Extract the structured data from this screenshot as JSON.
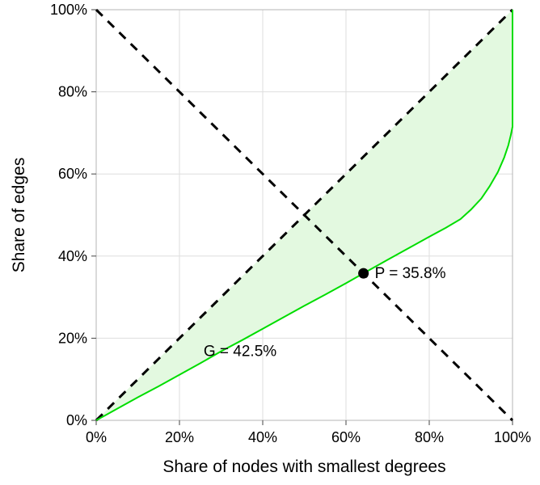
{
  "chart_data": {
    "type": "line",
    "title": "",
    "xlabel": "Share of nodes with smallest degrees",
    "ylabel": "Share of edges",
    "xlim": [
      0,
      100
    ],
    "ylim": [
      0,
      100
    ],
    "grid": true,
    "x_ticks": [
      0,
      20,
      40,
      60,
      80,
      100
    ],
    "y_ticks": [
      0,
      20,
      40,
      60,
      80,
      100
    ],
    "x_tick_labels": [
      "0%",
      "20%",
      "40%",
      "60%",
      "80%",
      "100%"
    ],
    "y_tick_labels": [
      "0%",
      "20%",
      "40%",
      "60%",
      "80%",
      "100%"
    ],
    "colors": {
      "curve": "#00dd00",
      "area_fill": "#e3f9e0",
      "dashed_line": "#000000",
      "grid": "#dedede",
      "axis_box": "#b5b5b5",
      "text": "#000000"
    },
    "series": [
      {
        "id": "equality-diagonal",
        "name": "equality diagonal (y = x)",
        "color": "#000000",
        "width": 3,
        "dash": "11 9",
        "points": [
          [
            0,
            0
          ],
          [
            100,
            100
          ]
        ]
      },
      {
        "id": "anti-diagonal",
        "name": "anti-diagonal (y = 100% - x)",
        "color": "#000000",
        "width": 3,
        "dash": "11 9",
        "points": [
          [
            0,
            100
          ],
          [
            100,
            0
          ]
        ]
      },
      {
        "id": "lorenz-curve",
        "name": "Lorenz curve of edge share vs node share",
        "color": "#00dd00",
        "width": 2,
        "dash": "",
        "points": [
          [
            0,
            0
          ],
          [
            5,
            2.8
          ],
          [
            10,
            5.6
          ],
          [
            15,
            8.3
          ],
          [
            20,
            11.1
          ],
          [
            25,
            13.9
          ],
          [
            30,
            16.8
          ],
          [
            35,
            19.5
          ],
          [
            40,
            22.3
          ],
          [
            45,
            25.1
          ],
          [
            50,
            27.9
          ],
          [
            55,
            30.6
          ],
          [
            60,
            33.4
          ],
          [
            64.2,
            35.8
          ],
          [
            70,
            39.1
          ],
          [
            75,
            41.9
          ],
          [
            80,
            44.7
          ],
          [
            84,
            46.9
          ],
          [
            87.5,
            49.0
          ],
          [
            90,
            51.3
          ],
          [
            92.5,
            54.0
          ],
          [
            94.5,
            57.0
          ],
          [
            96.5,
            60.5
          ],
          [
            98,
            64.0
          ],
          [
            99,
            67.0
          ],
          [
            99.6,
            69.5
          ],
          [
            100,
            71.5
          ],
          [
            100,
            100
          ]
        ]
      }
    ],
    "shaded_area": {
      "between": [
        "equality-diagonal",
        "lorenz-curve"
      ],
      "fill": "#e3f9e0"
    },
    "annotations": [
      {
        "id": "p-point",
        "label": "P = 35.8%",
        "x": 64.2,
        "y": 35.8,
        "marker": "dot",
        "value": 35.8
      },
      {
        "id": "g-label",
        "label": "G = 42.5%",
        "x": 25.8,
        "y": 16.8,
        "marker": "none",
        "value": 42.5
      }
    ]
  }
}
